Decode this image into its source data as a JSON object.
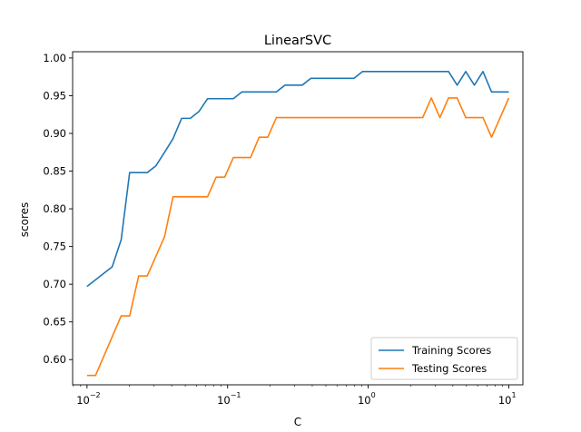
{
  "chart_data": {
    "type": "line",
    "title": "LinearSVC",
    "xlabel": "C",
    "ylabel": "scores",
    "xscale": "log",
    "xlim": [
      0.0079,
      12.6
    ],
    "ylim": [
      0.5666,
      1.0083
    ],
    "x_ticks": [
      {
        "value": 0.01,
        "base": "10",
        "exp": "−2"
      },
      {
        "value": 0.1,
        "base": "10",
        "exp": "−1"
      },
      {
        "value": 1,
        "base": "10",
        "exp": "0"
      },
      {
        "value": 10,
        "base": "10",
        "exp": "1"
      }
    ],
    "y_ticks": [
      "0.60",
      "0.65",
      "0.70",
      "0.75",
      "0.80",
      "0.85",
      "0.90",
      "0.95",
      "1.00"
    ],
    "grid": false,
    "legend_position": "lower-right",
    "series": [
      {
        "name": "Training Scores",
        "color": "#1f77b4",
        "points": [
          [
            0.01,
            0.697
          ],
          [
            0.0151,
            0.723
          ],
          [
            0.0175,
            0.759
          ],
          [
            0.0201,
            0.848
          ],
          [
            0.0233,
            0.848
          ],
          [
            0.0268,
            0.848
          ],
          [
            0.0309,
            0.857
          ],
          [
            0.0356,
            0.875
          ],
          [
            0.0409,
            0.893
          ],
          [
            0.0471,
            0.92
          ],
          [
            0.0543,
            0.92
          ],
          [
            0.0625,
            0.929
          ],
          [
            0.072,
            0.946
          ],
          [
            0.0829,
            0.946
          ],
          [
            0.0954,
            0.946
          ],
          [
            0.1099,
            0.946
          ],
          [
            0.1265,
            0.955
          ],
          [
            0.1456,
            0.955
          ],
          [
            0.1677,
            0.955
          ],
          [
            0.1931,
            0.955
          ],
          [
            0.2223,
            0.955
          ],
          [
            0.2559,
            0.964
          ],
          [
            0.2947,
            0.964
          ],
          [
            0.3393,
            0.964
          ],
          [
            0.3907,
            0.973
          ],
          [
            0.4498,
            0.973
          ],
          [
            0.5179,
            0.973
          ],
          [
            0.5964,
            0.973
          ],
          [
            0.6866,
            0.973
          ],
          [
            0.7906,
            0.973
          ],
          [
            0.9103,
            0.982
          ],
          [
            1.0481,
            0.982
          ],
          [
            1.2068,
            0.982
          ],
          [
            1.3895,
            0.982
          ],
          [
            1.5999,
            0.982
          ],
          [
            1.8421,
            0.982
          ],
          [
            2.121,
            0.982
          ],
          [
            2.4421,
            0.982
          ],
          [
            2.8118,
            0.982
          ],
          [
            3.2375,
            0.982
          ],
          [
            3.7276,
            0.982
          ],
          [
            4.2919,
            0.964
          ],
          [
            4.9417,
            0.982
          ],
          [
            5.6899,
            0.964
          ],
          [
            6.5513,
            0.982
          ],
          [
            7.5431,
            0.955
          ],
          [
            8.6851,
            0.955
          ],
          [
            10.0,
            0.955
          ]
        ]
      },
      {
        "name": "Testing Scores",
        "color": "#ff7f0e",
        "points": [
          [
            0.01,
            0.579
          ],
          [
            0.0115,
            0.579
          ],
          [
            0.0175,
            0.658
          ],
          [
            0.0201,
            0.658
          ],
          [
            0.0233,
            0.711
          ],
          [
            0.0268,
            0.711
          ],
          [
            0.0356,
            0.763
          ],
          [
            0.0409,
            0.816
          ],
          [
            0.0471,
            0.816
          ],
          [
            0.0543,
            0.816
          ],
          [
            0.0625,
            0.816
          ],
          [
            0.072,
            0.816
          ],
          [
            0.0829,
            0.842
          ],
          [
            0.0954,
            0.842
          ],
          [
            0.1099,
            0.868
          ],
          [
            0.1265,
            0.868
          ],
          [
            0.1456,
            0.868
          ],
          [
            0.1677,
            0.895
          ],
          [
            0.1931,
            0.895
          ],
          [
            0.2223,
            0.921
          ],
          [
            0.2559,
            0.921
          ],
          [
            0.2947,
            0.921
          ],
          [
            0.3393,
            0.921
          ],
          [
            0.3907,
            0.921
          ],
          [
            0.4498,
            0.921
          ],
          [
            0.5179,
            0.921
          ],
          [
            0.5964,
            0.921
          ],
          [
            0.6866,
            0.921
          ],
          [
            0.7906,
            0.921
          ],
          [
            0.9103,
            0.921
          ],
          [
            1.0481,
            0.921
          ],
          [
            1.2068,
            0.921
          ],
          [
            1.3895,
            0.921
          ],
          [
            1.5999,
            0.921
          ],
          [
            1.8421,
            0.921
          ],
          [
            2.121,
            0.921
          ],
          [
            2.4421,
            0.921
          ],
          [
            2.8118,
            0.947
          ],
          [
            3.2375,
            0.921
          ],
          [
            3.7276,
            0.947
          ],
          [
            4.2919,
            0.947
          ],
          [
            4.9417,
            0.921
          ],
          [
            5.6899,
            0.921
          ],
          [
            6.5513,
            0.921
          ],
          [
            7.5431,
            0.895
          ],
          [
            8.6851,
            0.921
          ],
          [
            10.0,
            0.947
          ]
        ]
      }
    ]
  }
}
